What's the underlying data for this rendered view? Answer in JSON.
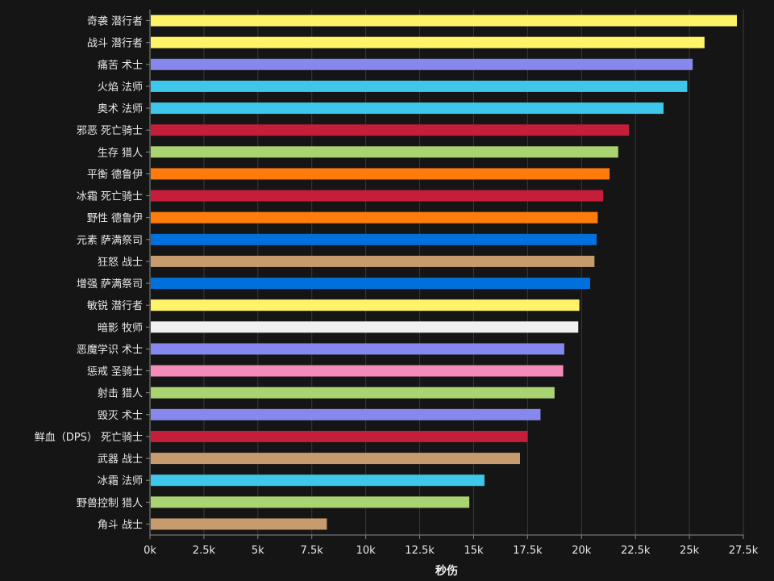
{
  "chart_data": {
    "type": "bar",
    "orientation": "horizontal",
    "xlabel": "秒伤",
    "xlim": [
      0,
      27500
    ],
    "x_ticks": [
      0,
      2500,
      5000,
      7500,
      10000,
      12500,
      15000,
      17500,
      20000,
      22500,
      25000,
      27500
    ],
    "x_tick_labels": [
      "0k",
      "2.5k",
      "5k",
      "7.5k",
      "10k",
      "12.5k",
      "15k",
      "17.5k",
      "20k",
      "22.5k",
      "25k",
      "27.5k"
    ],
    "grid": true,
    "bars": [
      {
        "label": "奇袭 潜行者",
        "value": 27200,
        "color": "#fff468"
      },
      {
        "label": "战斗 潜行者",
        "value": 25700,
        "color": "#fff468"
      },
      {
        "label": "痛苦 术士",
        "value": 25150,
        "color": "#8788ee"
      },
      {
        "label": "火焰 法师",
        "value": 24900,
        "color": "#3fc7eb"
      },
      {
        "label": "奥术 法师",
        "value": 23800,
        "color": "#3fc7eb"
      },
      {
        "label": "邪恶 死亡骑士",
        "value": 22200,
        "color": "#c41e3a"
      },
      {
        "label": "生存 猎人",
        "value": 21700,
        "color": "#aad372"
      },
      {
        "label": "平衡 德鲁伊",
        "value": 21300,
        "color": "#ff7c0a"
      },
      {
        "label": "冰霜 死亡骑士",
        "value": 21000,
        "color": "#c41e3a"
      },
      {
        "label": "野性 德鲁伊",
        "value": 20750,
        "color": "#ff7c0a"
      },
      {
        "label": "元素 萨满祭司",
        "value": 20700,
        "color": "#0070dd"
      },
      {
        "label": "狂怒 战士",
        "value": 20600,
        "color": "#c69b6d"
      },
      {
        "label": "增强 萨满祭司",
        "value": 20400,
        "color": "#0070dd"
      },
      {
        "label": "敏锐 潜行者",
        "value": 19900,
        "color": "#fff468"
      },
      {
        "label": "暗影 牧师",
        "value": 19850,
        "color": "#f0f0f0"
      },
      {
        "label": "恶魔学识 术士",
        "value": 19200,
        "color": "#8788ee"
      },
      {
        "label": "惩戒 圣骑士",
        "value": 19150,
        "color": "#f48cba"
      },
      {
        "label": "射击 猎人",
        "value": 18750,
        "color": "#aad372"
      },
      {
        "label": "毁灭 术士",
        "value": 18100,
        "color": "#8788ee"
      },
      {
        "label": "鲜血（DPS） 死亡骑士",
        "value": 17500,
        "color": "#c41e3a"
      },
      {
        "label": "武器 战士",
        "value": 17150,
        "color": "#c69b6d"
      },
      {
        "label": "冰霜 法师",
        "value": 15500,
        "color": "#3fc7eb"
      },
      {
        "label": "野兽控制 猎人",
        "value": 14800,
        "color": "#aad372"
      },
      {
        "label": "角斗 战士",
        "value": 8200,
        "color": "#c69b6d"
      }
    ]
  }
}
